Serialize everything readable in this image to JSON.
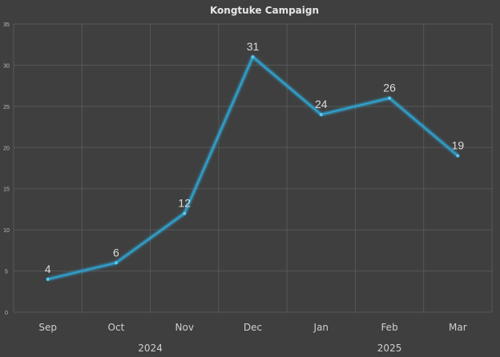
{
  "chart_data": {
    "type": "line",
    "title": "Kongtuke Campaign",
    "categories": [
      "Sep",
      "Oct",
      "Nov",
      "Dec",
      "Jan",
      "Feb",
      "Mar"
    ],
    "category_groups": [
      {
        "label": "2024",
        "categories": [
          "Sep",
          "Oct",
          "Nov",
          "Dec"
        ]
      },
      {
        "label": "2025",
        "categories": [
          "Jan",
          "Feb",
          "Mar"
        ]
      }
    ],
    "series": [
      {
        "name": "Kongtuke Campaign",
        "values": [
          4,
          6,
          12,
          31,
          24,
          26,
          19
        ],
        "color": "#2fa8d8"
      }
    ],
    "xlabel": "",
    "ylabel": "",
    "ylim": [
      0,
      35
    ],
    "yticks": [
      0,
      5,
      10,
      15,
      20,
      25,
      30,
      35
    ],
    "grid": true,
    "data_labels": true,
    "legend": "none"
  },
  "colors": {
    "background": "#3f3f3f",
    "grid": "#575757",
    "line": "#2fa8d8"
  }
}
